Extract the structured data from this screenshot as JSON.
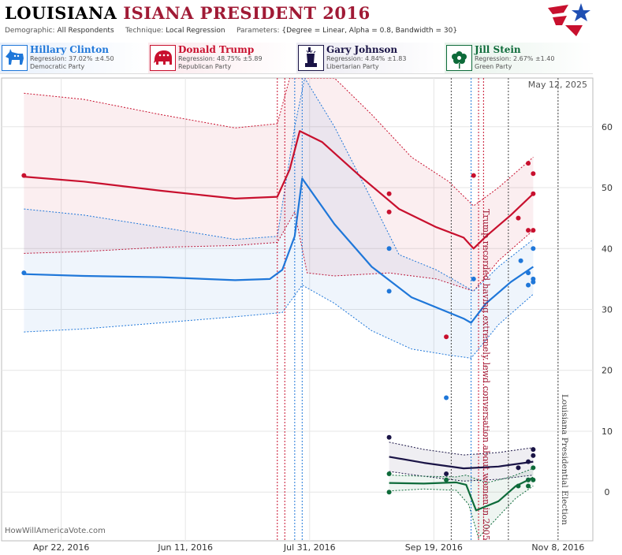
{
  "header": {
    "title_part1": "LOUISIANA",
    "title_part2": "ISIANA PRESIDENT 2016",
    "demographic_label": "Demographic:",
    "demographic_value": "All Respondents",
    "technique_label": "Technique:",
    "technique_value": "Local Regression",
    "parameters_label": "Parameters:",
    "parameters_value": "{Degree = Linear, Alpha = 0.8, Bandwidth = 30}"
  },
  "candidates": [
    {
      "name": "Hillary Clinton",
      "regression": "Regression: 37.02% ±4.50",
      "party": "Democratic Party",
      "color": "#1f77d9",
      "icon": "donkey-icon"
    },
    {
      "name": "Donald Trump",
      "regression": "Regression: 48.75% ±5.89",
      "party": "Republican Party",
      "color": "#c8102e",
      "icon": "elephant-icon"
    },
    {
      "name": "Gary Johnson",
      "regression": "Regression: 4.84% ±1.83",
      "party": "Libertarian Party",
      "color": "#1a1446",
      "icon": "statue-of-liberty-icon"
    },
    {
      "name": "Jill Stein",
      "regression": "Regression: 2.67% ±1.40",
      "party": "Green Party",
      "color": "#0e6b3a",
      "icon": "flower-icon"
    }
  ],
  "watermark": "HowWillAmericaVote.com",
  "chart_data": {
    "type": "line",
    "date_label": "May 12, 2025",
    "x_ticks": [
      "Apr 22, 2016",
      "Jun 11, 2016",
      "Jul 31, 2016",
      "Sep 19, 2016",
      "Nov 8, 2016"
    ],
    "x_range": [
      "2016-03-29",
      "2016-11-22"
    ],
    "ylim": [
      -8,
      68
    ],
    "y_ticks": [
      0,
      10,
      20,
      30,
      40,
      50,
      60
    ],
    "grid": true,
    "annotations": [
      {
        "text": "Trump recorded having extremely lewd conversation about women in 2005",
        "date": "2016-10-07",
        "color": "#a01a35"
      },
      {
        "text": "Louisiana Presidential Election",
        "date": "2016-11-08",
        "color": "#444444"
      }
    ],
    "event_lines": [
      {
        "date": "2016-07-18",
        "color": "#c8102e"
      },
      {
        "date": "2016-07-21",
        "color": "#c8102e"
      },
      {
        "date": "2016-07-25",
        "color": "#1f77d9"
      },
      {
        "date": "2016-07-28",
        "color": "#1f77d9"
      },
      {
        "date": "2016-09-26",
        "color": "#444444"
      },
      {
        "date": "2016-10-04",
        "color": "#1f77d9"
      },
      {
        "date": "2016-10-07",
        "color": "#c8102e"
      },
      {
        "date": "2016-10-09",
        "color": "#c8102e"
      },
      {
        "date": "2016-10-19",
        "color": "#444444"
      },
      {
        "date": "2016-11-08",
        "color": "#444444"
      }
    ],
    "series": [
      {
        "name": "Donald Trump",
        "color": "#c8102e",
        "line": [
          [
            "2016-04-07",
            51.8
          ],
          [
            "2016-05-01",
            51.0
          ],
          [
            "2016-06-01",
            49.5
          ],
          [
            "2016-07-01",
            48.2
          ],
          [
            "2016-07-18",
            48.5
          ],
          [
            "2016-07-23",
            53
          ],
          [
            "2016-07-27",
            59.3
          ],
          [
            "2016-08-05",
            57.5
          ],
          [
            "2016-08-20",
            52
          ],
          [
            "2016-09-05",
            46.5
          ],
          [
            "2016-09-20",
            43.5
          ],
          [
            "2016-10-01",
            41.8
          ],
          [
            "2016-10-05",
            40.0
          ],
          [
            "2016-10-10",
            42
          ],
          [
            "2016-10-20",
            45.5
          ],
          [
            "2016-10-29",
            49.0
          ]
        ],
        "upper": [
          [
            "2016-04-07",
            65.5
          ],
          [
            "2016-05-01",
            64.5
          ],
          [
            "2016-06-01",
            62.0
          ],
          [
            "2016-07-01",
            59.8
          ],
          [
            "2016-07-18",
            60.5
          ],
          [
            "2016-07-23",
            68
          ],
          [
            "2016-08-10",
            68
          ],
          [
            "2016-08-25",
            62
          ],
          [
            "2016-09-10",
            55
          ],
          [
            "2016-09-25",
            51
          ],
          [
            "2016-10-05",
            47
          ],
          [
            "2016-10-15",
            50
          ],
          [
            "2016-10-29",
            55.0
          ]
        ],
        "lower": [
          [
            "2016-04-07",
            39.2
          ],
          [
            "2016-05-01",
            39.5
          ],
          [
            "2016-06-01",
            40.2
          ],
          [
            "2016-07-01",
            40.5
          ],
          [
            "2016-07-18",
            41
          ],
          [
            "2016-07-25",
            46
          ],
          [
            "2016-07-30",
            36
          ],
          [
            "2016-08-10",
            35.5
          ],
          [
            "2016-09-01",
            36
          ],
          [
            "2016-09-20",
            35
          ],
          [
            "2016-10-05",
            33
          ],
          [
            "2016-10-15",
            38
          ],
          [
            "2016-10-29",
            43.0
          ]
        ],
        "points": [
          [
            "2016-04-07",
            52
          ],
          [
            "2016-09-01",
            49
          ],
          [
            "2016-09-01",
            46
          ],
          [
            "2016-09-24",
            25.5
          ],
          [
            "2016-10-05",
            52
          ],
          [
            "2016-10-23",
            45
          ],
          [
            "2016-10-27",
            43
          ],
          [
            "2016-10-27",
            54
          ],
          [
            "2016-10-29",
            52.3
          ],
          [
            "2016-10-29",
            49
          ],
          [
            "2016-10-29",
            43
          ]
        ]
      },
      {
        "name": "Hillary Clinton",
        "color": "#1f77d9",
        "line": [
          [
            "2016-04-07",
            35.8
          ],
          [
            "2016-05-01",
            35.5
          ],
          [
            "2016-06-01",
            35.3
          ],
          [
            "2016-07-01",
            34.8
          ],
          [
            "2016-07-15",
            35.0
          ],
          [
            "2016-07-20",
            36.5
          ],
          [
            "2016-07-25",
            42
          ],
          [
            "2016-07-28",
            51.5
          ],
          [
            "2016-08-10",
            44
          ],
          [
            "2016-08-25",
            37
          ],
          [
            "2016-09-10",
            32
          ],
          [
            "2016-09-25",
            29.5
          ],
          [
            "2016-10-01",
            28.5
          ],
          [
            "2016-10-04",
            27.8
          ],
          [
            "2016-10-10",
            31
          ],
          [
            "2016-10-20",
            34.5
          ],
          [
            "2016-10-29",
            37.0
          ]
        ],
        "upper": [
          [
            "2016-04-07",
            46.5
          ],
          [
            "2016-05-01",
            45.5
          ],
          [
            "2016-06-01",
            43.5
          ],
          [
            "2016-07-01",
            41.5
          ],
          [
            "2016-07-18",
            42
          ],
          [
            "2016-07-25",
            60
          ],
          [
            "2016-07-29",
            68
          ],
          [
            "2016-08-10",
            60
          ],
          [
            "2016-08-25",
            48
          ],
          [
            "2016-09-05",
            39
          ],
          [
            "2016-09-20",
            36.5
          ],
          [
            "2016-10-05",
            33
          ],
          [
            "2016-10-15",
            37
          ],
          [
            "2016-10-29",
            41.5
          ]
        ],
        "lower": [
          [
            "2016-04-07",
            26.3
          ],
          [
            "2016-05-01",
            26.8
          ],
          [
            "2016-06-01",
            27.8
          ],
          [
            "2016-07-01",
            28.8
          ],
          [
            "2016-07-20",
            29.5
          ],
          [
            "2016-07-28",
            34
          ],
          [
            "2016-08-10",
            31
          ],
          [
            "2016-08-25",
            26.5
          ],
          [
            "2016-09-10",
            23.5
          ],
          [
            "2016-09-25",
            22.5
          ],
          [
            "2016-10-04",
            22.0
          ],
          [
            "2016-10-15",
            27.5
          ],
          [
            "2016-10-29",
            32.5
          ]
        ],
        "points": [
          [
            "2016-04-07",
            36
          ],
          [
            "2016-09-01",
            40
          ],
          [
            "2016-09-01",
            33
          ],
          [
            "2016-09-24",
            15.5
          ],
          [
            "2016-10-05",
            35
          ],
          [
            "2016-10-24",
            38
          ],
          [
            "2016-10-27",
            36
          ],
          [
            "2016-10-27",
            34
          ],
          [
            "2016-10-29",
            40
          ],
          [
            "2016-10-29",
            35
          ],
          [
            "2016-10-29",
            34.5
          ]
        ]
      },
      {
        "name": "Gary Johnson",
        "color": "#1a1446",
        "line": [
          [
            "2016-09-01",
            5.8
          ],
          [
            "2016-09-15",
            4.8
          ],
          [
            "2016-10-01",
            3.9
          ],
          [
            "2016-10-15",
            4.2
          ],
          [
            "2016-10-29",
            5.0
          ]
        ],
        "upper": [
          [
            "2016-09-01",
            8.2
          ],
          [
            "2016-09-15",
            7.0
          ],
          [
            "2016-10-01",
            6.1
          ],
          [
            "2016-10-15",
            6.5
          ],
          [
            "2016-10-29",
            7.3
          ]
        ],
        "lower": [
          [
            "2016-09-01",
            3.4
          ],
          [
            "2016-09-15",
            2.6
          ],
          [
            "2016-10-01",
            1.8
          ],
          [
            "2016-10-15",
            2.1
          ],
          [
            "2016-10-29",
            2.8
          ]
        ],
        "points": [
          [
            "2016-09-01",
            9
          ],
          [
            "2016-09-24",
            3
          ],
          [
            "2016-10-23",
            4
          ],
          [
            "2016-10-27",
            2
          ],
          [
            "2016-10-27",
            5
          ],
          [
            "2016-10-29",
            7
          ],
          [
            "2016-10-29",
            6
          ]
        ]
      },
      {
        "name": "Jill Stein",
        "color": "#0e6b3a",
        "line": [
          [
            "2016-09-01",
            1.5
          ],
          [
            "2016-09-15",
            1.4
          ],
          [
            "2016-09-28",
            1.6
          ],
          [
            "2016-10-02",
            1.2
          ],
          [
            "2016-10-06",
            -3.0
          ],
          [
            "2016-10-15",
            -1.5
          ],
          [
            "2016-10-22",
            1.0
          ],
          [
            "2016-10-29",
            2.4
          ]
        ],
        "upper": [
          [
            "2016-09-01",
            2.8
          ],
          [
            "2016-09-15",
            2.6
          ],
          [
            "2016-09-28",
            2.5
          ],
          [
            "2016-10-02",
            2.8
          ],
          [
            "2016-10-10",
            1.5
          ],
          [
            "2016-10-20",
            2.5
          ],
          [
            "2016-10-29",
            3.9
          ]
        ],
        "lower": [
          [
            "2016-09-01",
            0.2
          ],
          [
            "2016-09-15",
            0.5
          ],
          [
            "2016-09-28",
            0.3
          ],
          [
            "2016-10-03",
            -2.0
          ],
          [
            "2016-10-07",
            -7.5
          ],
          [
            "2016-10-15",
            -4.0
          ],
          [
            "2016-10-22",
            -1.0
          ],
          [
            "2016-10-29",
            1.0
          ]
        ],
        "points": [
          [
            "2016-09-01",
            3
          ],
          [
            "2016-09-01",
            0
          ],
          [
            "2016-09-24",
            2
          ],
          [
            "2016-10-23",
            1
          ],
          [
            "2016-10-27",
            1
          ],
          [
            "2016-10-27",
            2
          ],
          [
            "2016-10-29",
            4
          ],
          [
            "2016-10-29",
            2
          ]
        ]
      }
    ]
  }
}
